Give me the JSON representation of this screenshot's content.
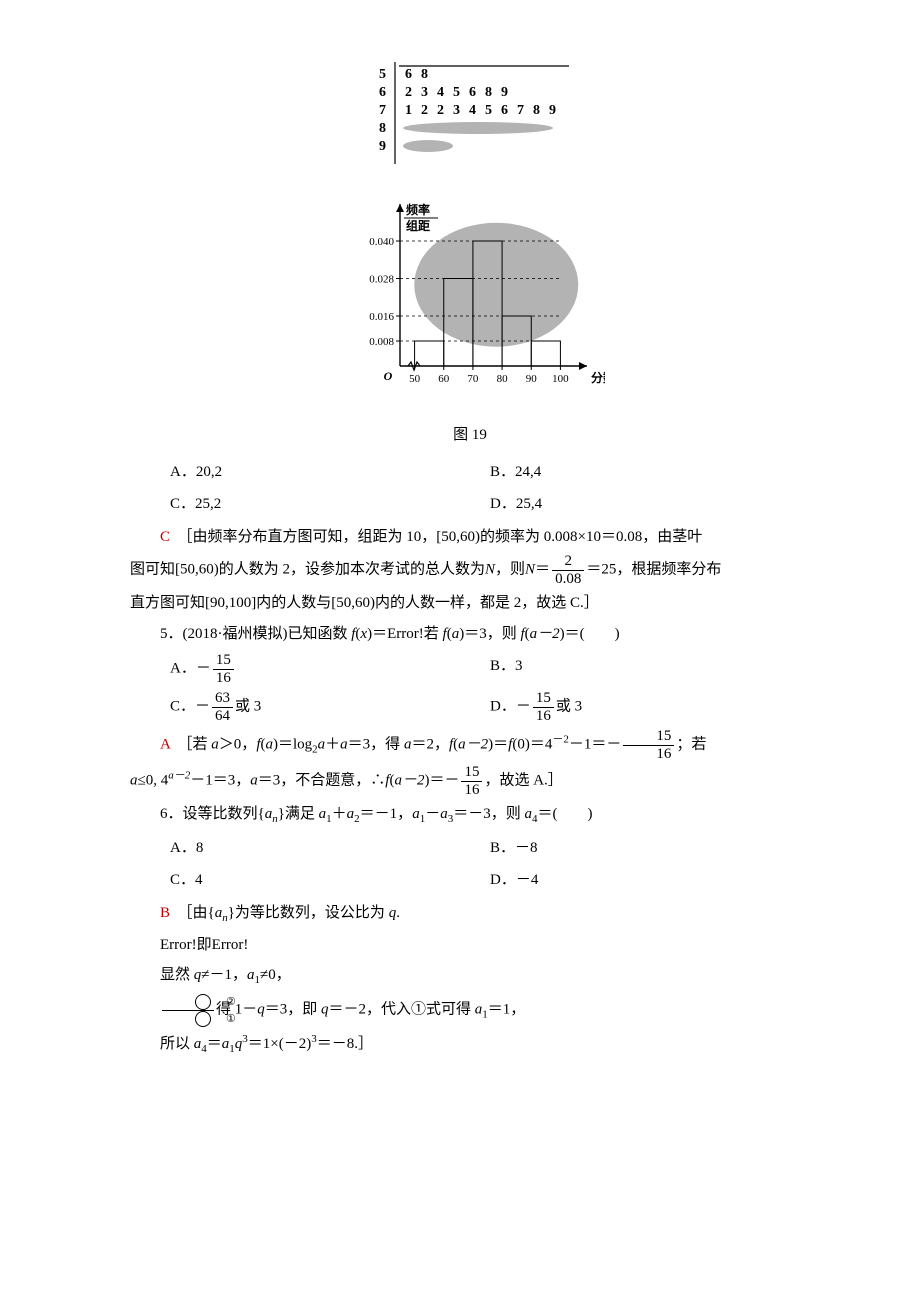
{
  "stemleaf": {
    "stems": [
      "5",
      "6",
      "7",
      "8",
      "9"
    ],
    "leaves": [
      [
        "6",
        "8"
      ],
      [
        "2",
        "3",
        "4",
        "5",
        "6",
        "8",
        "9"
      ],
      [
        "1",
        "2",
        "2",
        "3",
        "4",
        "5",
        "6",
        "7",
        "8",
        "9"
      ],
      [],
      []
    ],
    "font_size": 14,
    "line_color": "#000000",
    "blob_color": "#b3b3b3",
    "blob_rows": [
      3,
      4
    ]
  },
  "histogram": {
    "y_label_top": "频率",
    "y_label_bot": "组距",
    "x_label": "分数",
    "origin_label": "O",
    "x_ticks": [
      "50",
      "60",
      "70",
      "80",
      "90",
      "100"
    ],
    "x_positions": [
      50,
      60,
      70,
      80,
      90,
      100
    ],
    "x_range": [
      45,
      105
    ],
    "break_marker": true,
    "y_ticks": [
      "0.008",
      "0.016",
      "0.028",
      "0.040"
    ],
    "y_values": [
      0.008,
      0.016,
      0.028,
      0.04
    ],
    "y_range": [
      0,
      0.048
    ],
    "bars": [
      {
        "x0": 50,
        "x1": 60,
        "h": 0.008
      },
      {
        "x0": 60,
        "x1": 70,
        "h": 0.028
      },
      {
        "x0": 70,
        "x1": 80,
        "h": 0.04
      },
      {
        "x0": 80,
        "x1": 90,
        "h": 0.016
      },
      {
        "x0": 90,
        "x1": 100,
        "h": 0.008
      }
    ],
    "bar_outline": "#000000",
    "bar_fill": "#ffffff",
    "dash_color": "#000000",
    "axis_color": "#000000",
    "blob_color": "#b3b3b3",
    "font_size": 12,
    "font_size_small": 11
  },
  "fig_caption": "图 19",
  "q4": {
    "optA": "A．20,2",
    "optB": "B．24,4",
    "optC": "C．25,2",
    "optD": "D．25,4",
    "ans_letter": "C",
    "sol_a": "［由频率分布直方图可知，组距为 10，[50,60)的频率为 0.008×10＝0.08，由茎叶",
    "sol_b_pre": "图可知[50,60)的人数为 2，设参加本次考试的总人数为",
    "sol_b_N": "N",
    "sol_b_mid1": "，则",
    "sol_b_mid2": "＝",
    "frac_num": "2",
    "frac_den": "0.08",
    "sol_b_mid3": "＝25，根据频率分布",
    "sol_c": "直方图可知[90,100]内的人数与[50,60)内的人数一样，都是 2，故选 C.］"
  },
  "q5": {
    "stem_a": "5．(2018·福州模拟)已知函数 ",
    "fx": "f",
    "xvar": "x",
    "stem_b": "＝",
    "err": "Error!",
    "stem_c": "若 ",
    "fa": "f",
    "avar": "a",
    "stem_d": "＝3，则 ",
    "fa2": "f",
    "am2": "a－2",
    "stem_e": "＝(　　)",
    "optA_pre": "A．－",
    "optA_num": "15",
    "optA_den": "16",
    "optB": "B．3",
    "optC_pre": "C．－",
    "optC_num": "63",
    "optC_den": "64",
    "optC_suf": "或 3",
    "optD_pre": "D．－",
    "optD_num": "15",
    "optD_den": "16",
    "optD_suf": "或 3",
    "ans_letter": "A",
    "sol1_a": "［若 ",
    "sol1_b": "＞0，",
    "sol1_c": "＝log",
    "sol1_sub": "2",
    "sol1_d": "＋",
    "sol1_e": "＝3，得 ",
    "sol1_f": "＝2，",
    "sol1_g": "＝",
    "sol1_h": "(0)＝4",
    "sol1_exp": "－2",
    "sol1_i": "－1＝－",
    "sol1_num": "15",
    "sol1_den": "16",
    "sol1_j": "；若",
    "sol2_a": "≤0, 4",
    "sol2_exp": "a－2",
    "sol2_b": "－1＝3，",
    "sol2_c": "＝3，不合题意，∴",
    "sol2_d": "＝－",
    "sol2_num": "15",
    "sol2_den": "16",
    "sol2_e": "，故选 A.］"
  },
  "q6": {
    "stem_a": "6．设等比数列{",
    "an": "a",
    "nsub": "n",
    "stem_b": "}满足 ",
    "a1": "a",
    "sub1": "1",
    "stem_c": "＋",
    "a2": "a",
    "sub2": "2",
    "stem_d": "＝－1，",
    "stem_e": "－",
    "a3": "a",
    "sub3": "3",
    "stem_f": "＝－3，则 ",
    "a4": "a",
    "sub4": "4",
    "stem_g": "＝(　　)",
    "optA": "A．8",
    "optB": "B．－8",
    "optC": "C．4",
    "optD": "D．－4",
    "ans_letter": "B",
    "sol1_a": "［由{",
    "sol1_b": "}为等比数列，设公比为 ",
    "qvar": "q",
    "sol1_c": ".",
    "err": "Error!",
    "sol2_mid": "即",
    "sol3_a": "显然 ",
    "sol3_b": "≠－1，",
    "sol3_c": "≠0，",
    "sol4_num": "②",
    "sol4_den": "①",
    "sol4_a": "得 1－",
    "sol4_b": "＝3，即 ",
    "sol4_c": "＝－2，代入①式可得 ",
    "sol4_d": "＝1，",
    "sol5_a": "所以 ",
    "sol5_b": "＝",
    "sol5_c": "＝1×(－2)",
    "sol5_exp": "3",
    "sol5_d": "＝－8.］"
  }
}
